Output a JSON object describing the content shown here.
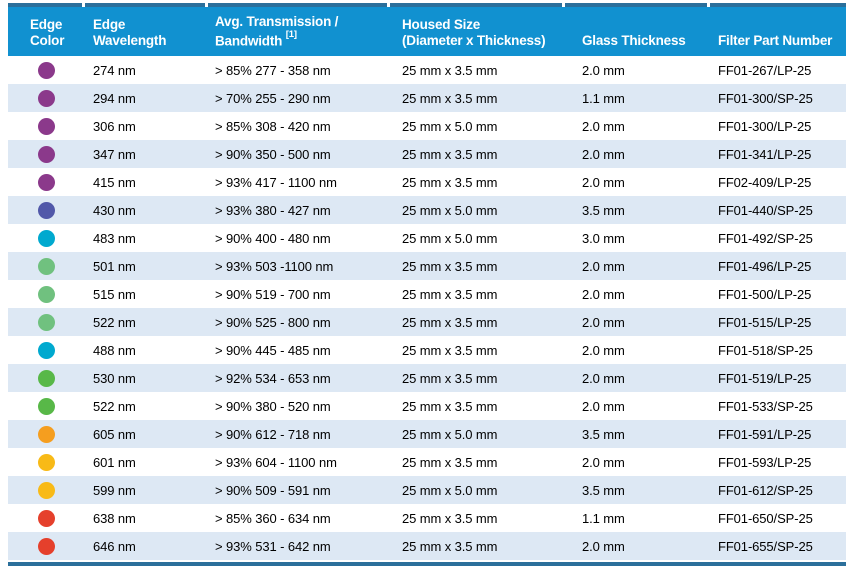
{
  "colors": {
    "header_bg": "#1191d0",
    "border_line": "#2b6f9b",
    "row_alt": "#dde8f4",
    "text": "#000000"
  },
  "table": {
    "header": {
      "columns": [
        {
          "id": "edge-color",
          "line1": "Edge",
          "line2": "Color"
        },
        {
          "id": "edge-wavelength",
          "line1": "Edge",
          "line2": "Wavelength"
        },
        {
          "id": "avg-transmission-bandwidth",
          "line1": "Avg. Transmission /",
          "line2": "Bandwidth",
          "sup": "[1]"
        },
        {
          "id": "housed-size",
          "line1": "Housed Size",
          "line2": "(Diameter x Thickness)"
        },
        {
          "id": "glass-thickness",
          "line2": "Glass Thickness"
        },
        {
          "id": "filter-part-number",
          "line2": "Filter Part Number"
        }
      ]
    },
    "rows": [
      {
        "dot_color": "#8b398b",
        "dot_name": "purple",
        "wavelength": "274 nm",
        "transmission": "> 85% 277 - 358 nm",
        "housed_size": "25 mm x 3.5 mm",
        "glass_thickness": "2.0 mm",
        "part_number": "FF01-267/LP-25"
      },
      {
        "dot_color": "#8b398b",
        "dot_name": "purple",
        "wavelength": "294 nm",
        "transmission": "> 70% 255 - 290 nm",
        "housed_size": "25 mm x 3.5 mm",
        "glass_thickness": "1.1 mm",
        "part_number": "FF01-300/SP-25"
      },
      {
        "dot_color": "#8b398b",
        "dot_name": "purple",
        "wavelength": "306 nm",
        "transmission": "> 85% 308 - 420 nm",
        "housed_size": "25 mm x 5.0 mm",
        "glass_thickness": "2.0 mm",
        "part_number": "FF01-300/LP-25"
      },
      {
        "dot_color": "#8b398b",
        "dot_name": "purple",
        "wavelength": "347 nm",
        "transmission": "> 90% 350 - 500 nm",
        "housed_size": "25 mm x 3.5 mm",
        "glass_thickness": "2.0 mm",
        "part_number": "FF01-341/LP-25"
      },
      {
        "dot_color": "#8b398b",
        "dot_name": "purple",
        "wavelength": "415 nm",
        "transmission": "> 93% 417 - 1100 nm",
        "housed_size": "25 mm x 3.5 mm",
        "glass_thickness": "2.0 mm",
        "part_number": "FF02-409/LP-25"
      },
      {
        "dot_color": "#5158a9",
        "dot_name": "indigo",
        "wavelength": "430 nm",
        "transmission": "> 93% 380 - 427 nm",
        "housed_size": "25 mm x 5.0 mm",
        "glass_thickness": "3.5 mm",
        "part_number": "FF01-440/SP-25"
      },
      {
        "dot_color": "#00a9cf",
        "dot_name": "cyan",
        "wavelength": "483 nm",
        "transmission": "> 90% 400 - 480 nm",
        "housed_size": "25 mm x 5.0 mm",
        "glass_thickness": "3.0 mm",
        "part_number": "FF01-492/SP-25"
      },
      {
        "dot_color": "#70c17f",
        "dot_name": "soft-green",
        "wavelength": "501 nm",
        "transmission": "> 93% 503 -1100 nm",
        "housed_size": "25 mm x 3.5 mm",
        "glass_thickness": "2.0 mm",
        "part_number": "FF01-496/LP-25"
      },
      {
        "dot_color": "#70c17f",
        "dot_name": "soft-green",
        "wavelength": "515 nm",
        "transmission": "> 90% 519 - 700 nm",
        "housed_size": "25 mm x 3.5 mm",
        "glass_thickness": "2.0 mm",
        "part_number": "FF01-500/LP-25"
      },
      {
        "dot_color": "#70c17f",
        "dot_name": "soft-green",
        "wavelength": "522 nm",
        "transmission": "> 90% 525 - 800 nm",
        "housed_size": "25 mm x 3.5 mm",
        "glass_thickness": "2.0 mm",
        "part_number": "FF01-515/LP-25"
      },
      {
        "dot_color": "#00a9cf",
        "dot_name": "cyan",
        "wavelength": "488 nm",
        "transmission": "> 90% 445 - 485 nm",
        "housed_size": "25 mm x 3.5 mm",
        "glass_thickness": "2.0 mm",
        "part_number": "FF01-518/SP-25"
      },
      {
        "dot_color": "#58b848",
        "dot_name": "green",
        "wavelength": "530 nm",
        "transmission": "> 92% 534 - 653 nm",
        "housed_size": "25 mm x 3.5 mm",
        "glass_thickness": "2.0 mm",
        "part_number": "FF01-519/LP-25"
      },
      {
        "dot_color": "#58b848",
        "dot_name": "green",
        "wavelength": "522 nm",
        "transmission": "> 90% 380 - 520 nm",
        "housed_size": "25 mm x 3.5 mm",
        "glass_thickness": "2.0 mm",
        "part_number": "FF01-533/SP-25"
      },
      {
        "dot_color": "#f59e1f",
        "dot_name": "orange",
        "wavelength": "605 nm",
        "transmission": "> 90% 612 - 718 nm",
        "housed_size": "25 mm x 5.0 mm",
        "glass_thickness": "3.5 mm",
        "part_number": "FF01-591/LP-25"
      },
      {
        "dot_color": "#f8ba17",
        "dot_name": "amber",
        "wavelength": "601 nm",
        "transmission": "> 93% 604 - 1100 nm",
        "housed_size": "25 mm x 3.5 mm",
        "glass_thickness": "2.0 mm",
        "part_number": "FF01-593/LP-25"
      },
      {
        "dot_color": "#f8ba17",
        "dot_name": "amber",
        "wavelength": "599 nm",
        "transmission": "> 90% 509 - 591 nm",
        "housed_size": "25 mm x 5.0 mm",
        "glass_thickness": "3.5 mm",
        "part_number": "FF01-612/SP-25"
      },
      {
        "dot_color": "#e5402c",
        "dot_name": "red",
        "wavelength": "638 nm",
        "transmission": "> 85% 360 - 634 nm",
        "housed_size": "25 mm x 3.5 mm",
        "glass_thickness": "1.1 mm",
        "part_number": "FF01-650/SP-25"
      },
      {
        "dot_color": "#e5402c",
        "dot_name": "red",
        "wavelength": "646 nm",
        "transmission": "> 93% 531 - 642 nm",
        "housed_size": "25 mm x 3.5 mm",
        "glass_thickness": "2.0 mm",
        "part_number": "FF01-655/SP-25"
      }
    ]
  }
}
